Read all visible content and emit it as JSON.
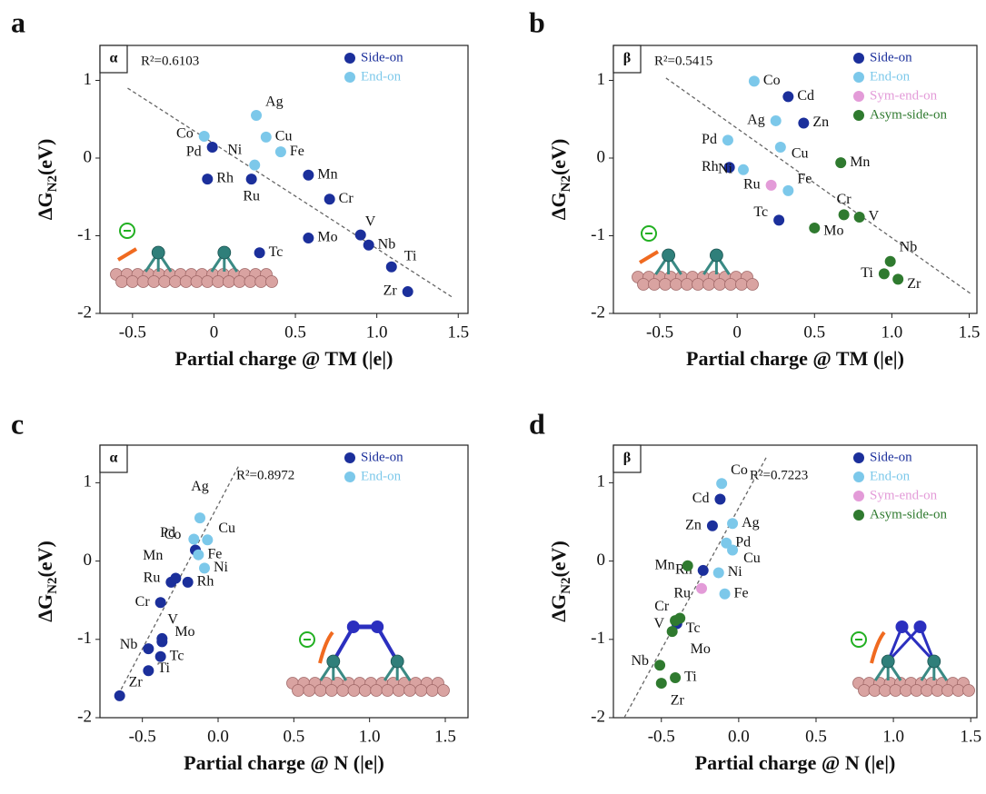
{
  "chart_data": [
    {
      "type": "scatter",
      "panel": "a",
      "box_label": "α",
      "annotation": "R²=0.6103",
      "xlabel": "Partial charge @ TM (|e|)",
      "ylabel": "ΔG",
      "ylabel_sub": "N2",
      "ylabel_unit": "(eV)",
      "xlim": [
        -0.7,
        1.56
      ],
      "ylim": [
        -2,
        1.45
      ],
      "xticks": [
        -0.5,
        0,
        0.5,
        {
          "value": 1,
          "label": "1.0"
        },
        1.5
      ],
      "yticks": [
        -2,
        -1,
        0,
        1
      ],
      "legend": "upper right",
      "fit": {
        "x": [
          -0.53,
          1.47
        ],
        "y": [
          0.9,
          -1.8
        ]
      },
      "series": [
        {
          "name": "Side-on",
          "color": "#1b2f9b",
          "labels": [
            "Pd",
            "Rh",
            "Ru",
            "Mn",
            "Cr",
            "V",
            "Nb",
            "Mo",
            "Tc",
            "Ti",
            "Zr"
          ],
          "x": [
            -0.01,
            -0.04,
            0.23,
            0.58,
            0.71,
            0.9,
            0.95,
            0.58,
            0.28,
            1.09,
            1.19
          ],
          "values": [
            0.14,
            -0.27,
            -0.27,
            -0.22,
            -0.53,
            -0.99,
            -1.12,
            -1.03,
            -1.22,
            -1.4,
            -1.72
          ]
        },
        {
          "name": "End-on",
          "color": "#7cc8ea",
          "labels": [
            "Ag",
            "Cu",
            "Fe",
            "Co",
            "Ni"
          ],
          "x": [
            0.26,
            0.32,
            0.41,
            -0.06,
            0.25
          ],
          "values": [
            0.55,
            0.27,
            0.08,
            0.28,
            -0.09
          ]
        }
      ]
    },
    {
      "type": "scatter",
      "panel": "b",
      "box_label": "β",
      "annotation": "R²=0.5415",
      "xlabel": "Partial charge @ TM (|e|)",
      "ylabel": "ΔG",
      "ylabel_sub": "N2",
      "ylabel_unit": "(eV)",
      "xlim": [
        -0.8,
        1.55
      ],
      "ylim": [
        -2,
        1.45
      ],
      "xticks": [
        -0.5,
        0,
        0.5,
        {
          "value": 1,
          "label": "1.0"
        },
        1.5
      ],
      "yticks": [
        -2,
        -1,
        0,
        1
      ],
      "legend": "upper right",
      "fit": {
        "x": [
          -0.46,
          1.52
        ],
        "y": [
          1.03,
          -1.76
        ]
      },
      "series": [
        {
          "name": "Side-on",
          "color": "#1b2f9b",
          "labels": [
            "Cd",
            "Zn",
            "Rh",
            "Tc"
          ],
          "x": [
            0.33,
            0.43,
            -0.05,
            0.27
          ],
          "values": [
            0.79,
            0.45,
            -0.12,
            -0.8
          ]
        },
        {
          "name": "End-on",
          "color": "#7cc8ea",
          "labels": [
            "Co",
            "Ag",
            "Pd",
            "Cu",
            "Ni",
            "Fe"
          ],
          "x": [
            0.11,
            0.25,
            -0.06,
            0.28,
            0.04,
            0.33
          ],
          "values": [
            0.99,
            0.48,
            0.23,
            0.14,
            -0.15,
            -0.42
          ]
        },
        {
          "name": "Sym-end-on",
          "color": "#e39bd8",
          "labels": [
            "Ru"
          ],
          "x": [
            0.22
          ],
          "values": [
            -0.35
          ]
        },
        {
          "name": "Asym-side-on",
          "color": "#2f7a2f",
          "labels": [
            "Mn",
            "Cr",
            "V",
            "Mo",
            "Nb",
            "Ti",
            "Zr"
          ],
          "x": [
            0.67,
            0.69,
            0.79,
            0.5,
            0.99,
            0.95,
            1.04
          ],
          "values": [
            -0.06,
            -0.73,
            -0.76,
            -0.9,
            -1.33,
            -1.49,
            -1.56
          ]
        }
      ]
    },
    {
      "type": "scatter",
      "panel": "c",
      "box_label": "α",
      "annotation": "R²=0.8972",
      "xlabel": "Partial charge @ N (|e|)",
      "ylabel": "ΔG",
      "ylabel_sub": "N2",
      "ylabel_unit": "(eV)",
      "xlim": [
        -0.78,
        1.65
      ],
      "ylim": [
        -2,
        1.48
      ],
      "xticks": [
        -0.5,
        {
          "value": 0,
          "label": "0.0"
        },
        0.5,
        {
          "value": 1,
          "label": "1.0"
        },
        1.5
      ],
      "yticks": [
        -2,
        -1,
        0,
        1
      ],
      "legend": "upper right",
      "fit": {
        "x": [
          -0.66,
          0.14
        ],
        "y": [
          -1.71,
          1.23
        ]
      },
      "series": [
        {
          "name": "Side-on",
          "color": "#1b2f9b",
          "labels": [
            "Pd",
            "Rh",
            "Ru",
            "Mn",
            "Cr",
            "V",
            "Nb",
            "Mo",
            "Tc",
            "Ti",
            "Zr"
          ],
          "x": [
            -0.15,
            -0.2,
            -0.31,
            -0.28,
            -0.38,
            -0.37,
            -0.46,
            -0.37,
            -0.38,
            -0.46,
            -0.65
          ],
          "values": [
            0.14,
            -0.27,
            -0.27,
            -0.22,
            -0.53,
            -0.99,
            -1.12,
            -1.03,
            -1.22,
            -1.4,
            -1.72
          ]
        },
        {
          "name": "End-on",
          "color": "#7cc8ea",
          "labels": [
            "Ag",
            "Cu",
            "Fe",
            "Co",
            "Ni"
          ],
          "x": [
            -0.12,
            -0.07,
            -0.13,
            -0.16,
            -0.09
          ],
          "values": [
            0.55,
            0.27,
            0.08,
            0.28,
            -0.09
          ]
        }
      ]
    },
    {
      "type": "scatter",
      "panel": "d",
      "box_label": "β",
      "annotation": "R²=0.7223",
      "xlabel": "Partial charge @ N (|e|)",
      "ylabel": "ΔG",
      "ylabel_sub": "N2",
      "ylabel_unit": "(eV)",
      "xlim": [
        -0.81,
        1.54
      ],
      "ylim": [
        -2,
        1.48
      ],
      "xticks": [
        -0.5,
        {
          "value": 0,
          "label": "0.0"
        },
        0.5,
        {
          "value": 1,
          "label": "1.0"
        },
        1.5
      ],
      "yticks": [
        -2,
        -1,
        0,
        1
      ],
      "legend": "upper right",
      "fit": {
        "x": [
          -0.74,
          0.18
        ],
        "y": [
          -2,
          1.33
        ]
      },
      "series": [
        {
          "name": "Side-on",
          "color": "#1b2f9b",
          "labels": [
            "Cd",
            "Zn",
            "Rh",
            "Tc"
          ],
          "x": [
            -0.12,
            -0.17,
            -0.23,
            -0.4
          ],
          "values": [
            0.79,
            0.45,
            -0.12,
            -0.8
          ]
        },
        {
          "name": "End-on",
          "color": "#7cc8ea",
          "labels": [
            "Co",
            "Ag",
            "Pd",
            "Cu",
            "Ni",
            "Fe"
          ],
          "x": [
            -0.11,
            -0.04,
            -0.08,
            -0.04,
            -0.13,
            -0.09
          ],
          "values": [
            0.99,
            0.48,
            0.23,
            0.14,
            -0.15,
            -0.42
          ]
        },
        {
          "name": "Sym-end-on",
          "color": "#e39bd8",
          "labels": [
            "Ru"
          ],
          "x": [
            -0.24
          ],
          "values": [
            -0.35
          ]
        },
        {
          "name": "Asym-side-on",
          "color": "#2f7a2f",
          "labels": [
            "Mn",
            "Cr",
            "V",
            "Mo",
            "Nb",
            "Ti",
            "Zr"
          ],
          "x": [
            -0.33,
            -0.38,
            -0.41,
            -0.43,
            -0.51,
            -0.41,
            -0.5
          ],
          "values": [
            -0.06,
            -0.73,
            -0.76,
            -0.9,
            -1.33,
            -1.49,
            -1.56
          ]
        }
      ]
    }
  ]
}
